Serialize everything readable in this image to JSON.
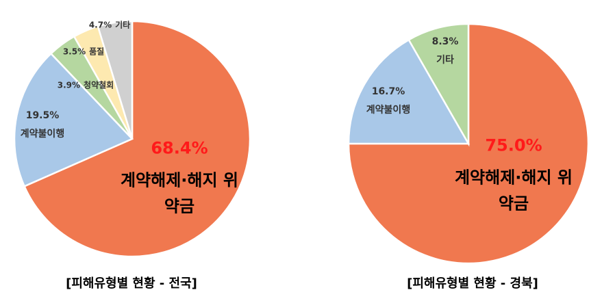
{
  "chart_data": [
    {
      "type": "pie",
      "title": "[피해유형별 현황 - 전국]",
      "categories": [
        "계약해제·해지 위약금",
        "계약불이행",
        "청약철회",
        "품질",
        "기타"
      ],
      "values": [
        68.4,
        19.5,
        3.9,
        3.5,
        4.7
      ],
      "value_labels": [
        "68.4%",
        "19.5%",
        "3.9%",
        "3.5%",
        "4.7%"
      ],
      "colors": [
        "#f0784f",
        "#a9c8e8",
        "#b5d7a0",
        "#fde9b0",
        "#d0d0d0"
      ]
    },
    {
      "type": "pie",
      "title": "[피해유형별 현황 - 경북]",
      "categories": [
        "계약해제·해지 위약금",
        "계약불이행",
        "기타"
      ],
      "values": [
        75.0,
        16.7,
        8.3
      ],
      "value_labels": [
        "75.0%",
        "16.7%",
        "8.3%"
      ],
      "colors": [
        "#f0784f",
        "#a9c8e8",
        "#b5d7a0"
      ]
    }
  ]
}
